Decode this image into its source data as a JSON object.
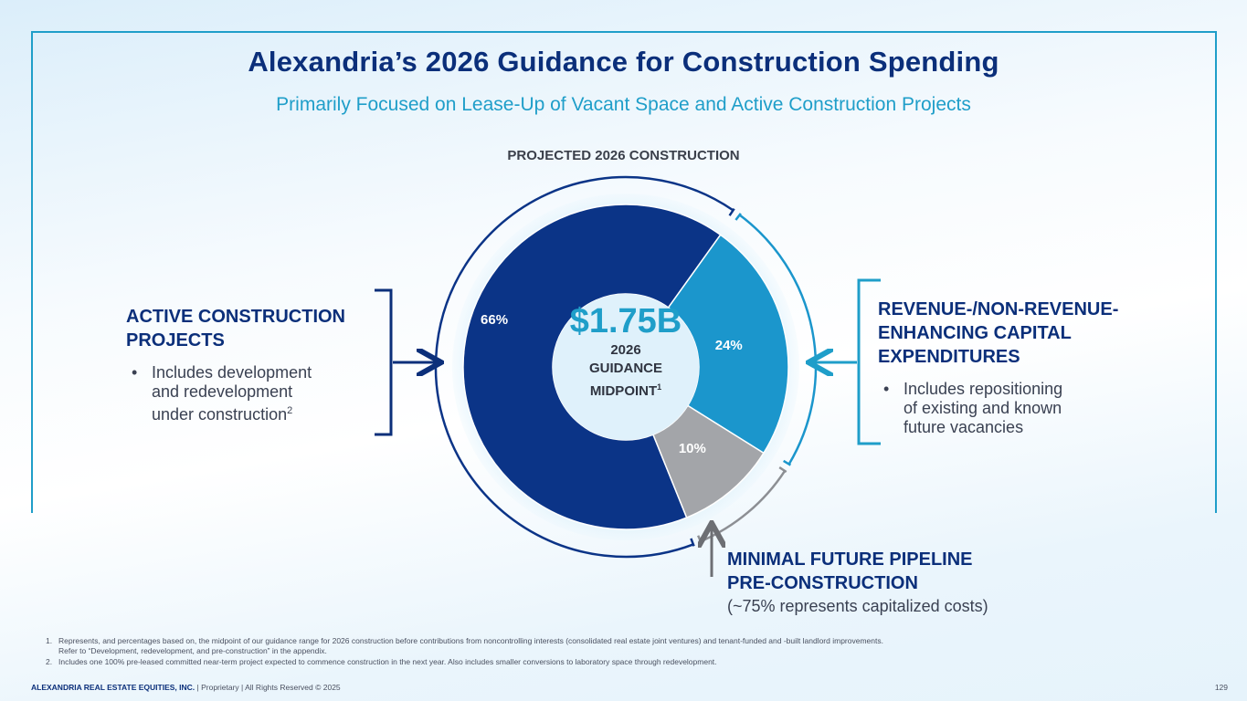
{
  "header": {
    "title": "Alexandria’s 2026 Guidance for Construction Spending",
    "subtitle": "Primarily Focused on Lease-Up of Vacant Space and Active Construction Projects"
  },
  "chart_data": {
    "type": "pie",
    "title": "PROJECTED 2026 CONSTRUCTION",
    "slices": [
      {
        "name": "Active Construction Projects",
        "value": 66,
        "label": "66%",
        "color": "#0b3487"
      },
      {
        "name": "Revenue-/Non-Revenue-Enhancing Capital Expenditures",
        "value": 24,
        "label": "24%",
        "color": "#1b96cc"
      },
      {
        "name": "Minimal Future Pipeline Pre-Construction",
        "value": 10,
        "label": "10%",
        "color": "#a3a5a9"
      }
    ],
    "center": {
      "value": "$1.75B",
      "line1": "2026",
      "line2": "GUIDANCE",
      "line3": "MIDPOINT",
      "sup": "1"
    }
  },
  "left": {
    "heading_line1": "ACTIVE CONSTRUCTION",
    "heading_line2": "PROJECTS",
    "bullet_line1": "Includes development",
    "bullet_line2": "and redevelopment",
    "bullet_line3": "under construction",
    "bullet_sup": "2"
  },
  "right": {
    "heading_line1": "REVENUE-/NON-REVENUE-",
    "heading_line2": "ENHANCING CAPITAL",
    "heading_line3": "EXPENDITURES",
    "bullet_line1": "Includes repositioning",
    "bullet_line2": "of existing and known",
    "bullet_line3": "future vacancies"
  },
  "bottom": {
    "heading_line1": "MINIMAL FUTURE PIPELINE",
    "heading_line2": "PRE-CONSTRUCTION",
    "note": "(~75% represents capitalized costs)"
  },
  "footnotes": [
    {
      "num": "1.",
      "line1": "Represents, and percentages based on, the midpoint of our guidance range for 2026 construction before contributions from noncontrolling interests (consolidated real estate joint ventures) and tenant-funded and -built landlord improvements.",
      "line2": "Refer to “Development, redevelopment, and pre-construction” in the appendix."
    },
    {
      "num": "2.",
      "line1": "Includes one 100% pre-leased committed near-term project expected to commence construction in the next year. Also includes smaller conversions to laboratory space through redevelopment.",
      "line2": ""
    }
  ],
  "footer": {
    "company": "ALEXANDRIA REAL ESTATE EQUITIES, INC.",
    "rights": " | Proprietary | All Rights Reserved © 2025",
    "page": "129"
  }
}
